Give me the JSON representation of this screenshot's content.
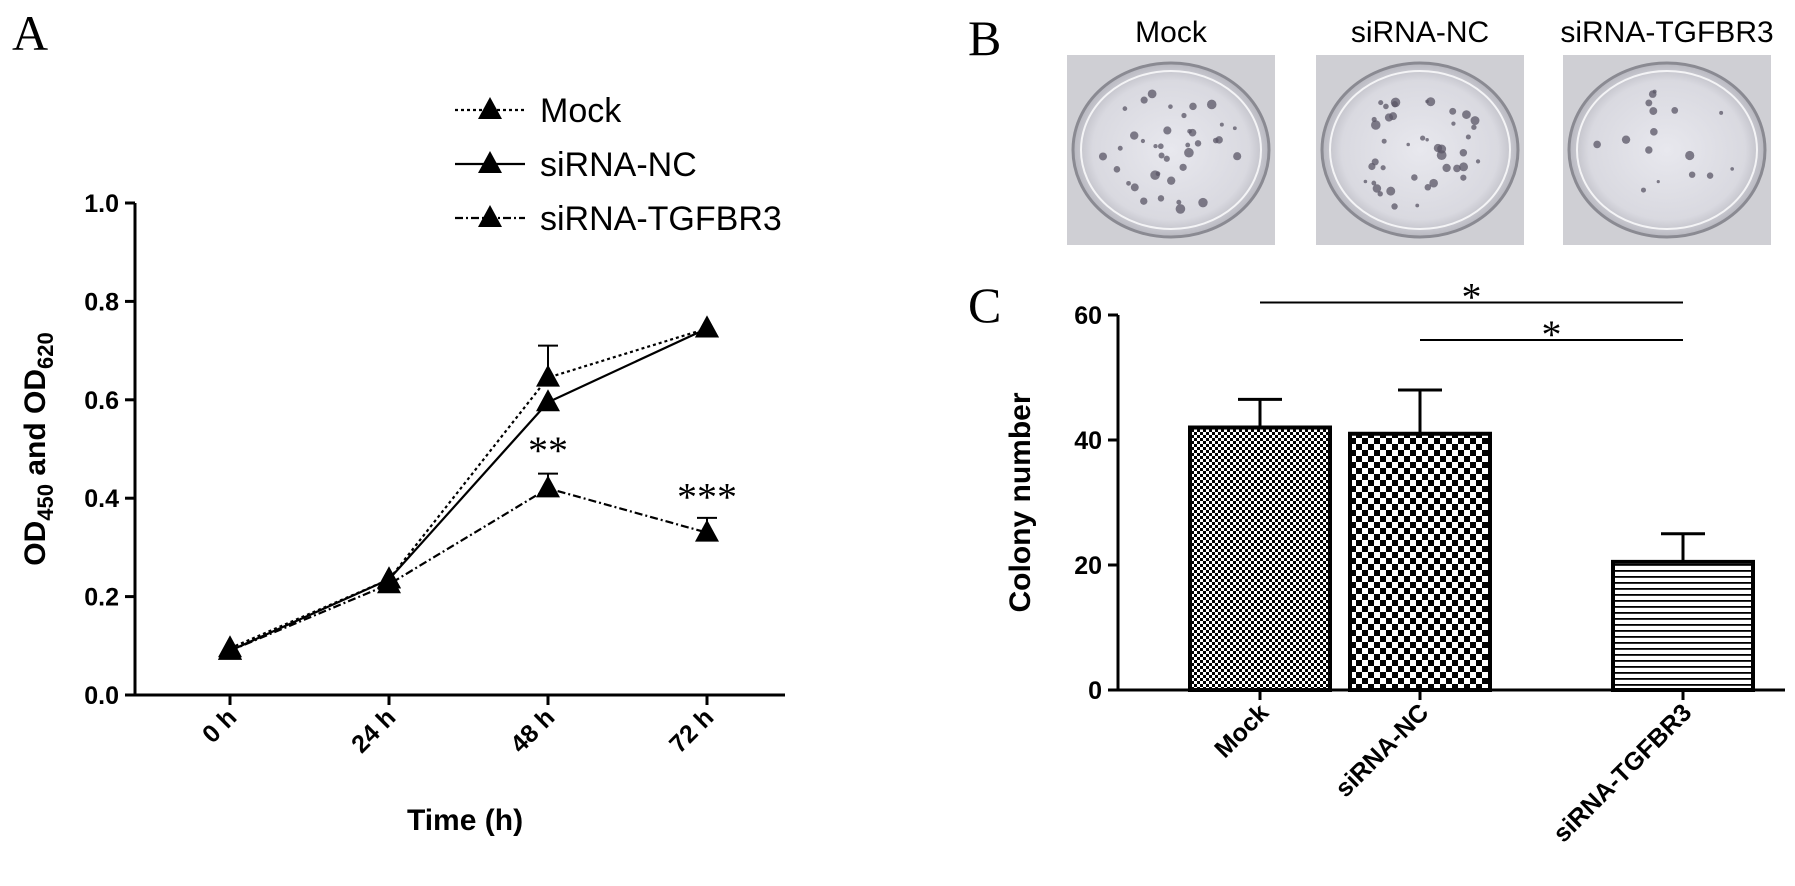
{
  "panels": {
    "a": {
      "label": "A"
    },
    "b": {
      "label": "B"
    },
    "c": {
      "label": "C"
    }
  },
  "photos": [
    {
      "label": "Mock",
      "dots": 38,
      "seed": 3
    },
    {
      "label": "siRNA-NC",
      "dots": 42,
      "seed": 11
    },
    {
      "label": "siRNA-TGFBR3",
      "dots": 16,
      "seed": 27
    }
  ],
  "chart_data": [
    {
      "type": "line",
      "title": "",
      "xlabel": "Time (h)",
      "ylabel_main": "OD",
      "ylabel_sub1": "450",
      "ylabel_mid": " and OD",
      "ylabel_sub2": "620",
      "categories": [
        "0 h",
        "24 h",
        "48 h",
        "72 h"
      ],
      "ylim": [
        0,
        1.0
      ],
      "yticks": [
        "0.0",
        "0.2",
        "0.4",
        "0.6",
        "0.8",
        "1.0"
      ],
      "legend_position": "top-center",
      "series": [
        {
          "name": "Mock",
          "style": "dotted",
          "values": [
            0.095,
            0.235,
            0.645,
            0.745
          ],
          "err": [
            0,
            0,
            0.065,
            0
          ]
        },
        {
          "name": "siRNA-NC",
          "style": "solid",
          "values": [
            0.09,
            0.235,
            0.595,
            0.745
          ],
          "err": [
            0,
            0,
            0,
            0
          ]
        },
        {
          "name": "siRNA-TGFBR3",
          "style": "dashdot",
          "values": [
            0.09,
            0.225,
            0.42,
            0.33
          ],
          "err": [
            0,
            0,
            0.03,
            0.03
          ]
        }
      ],
      "annotations": [
        {
          "text": "**",
          "category": "48 h",
          "y": 0.49
        },
        {
          "text": "***",
          "category": "72 h",
          "y": 0.395
        }
      ]
    },
    {
      "type": "bar",
      "title": "",
      "xlabel": "",
      "ylabel": "Colony number",
      "categories": [
        "Mock",
        "siRNA-NC",
        "siRNA-TGFBR3"
      ],
      "values": [
        42,
        41,
        20.5
      ],
      "err": [
        4.5,
        7,
        4.5
      ],
      "ylim": [
        0,
        60
      ],
      "yticks": [
        "0",
        "20",
        "40",
        "60"
      ],
      "patterns": [
        "fine-check",
        "coarse-check",
        "horizontal-lines"
      ],
      "significance": [
        {
          "from": 0,
          "to": 2,
          "text": "*",
          "y": 62
        },
        {
          "from": 1,
          "to": 2,
          "text": "*",
          "y": 56
        }
      ]
    }
  ]
}
